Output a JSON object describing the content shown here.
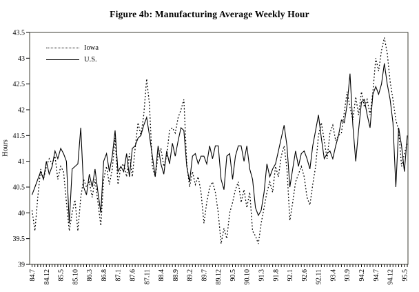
{
  "title": "Figure 4b: Manufacturing Average Weekly Hour",
  "y_axis": {
    "label": "Hours",
    "min": 39,
    "max": 43.5,
    "tick_step": 0.5,
    "tick_labels": [
      "43.5",
      "43",
      "42.5",
      "42",
      "41.5",
      "41",
      "40.5",
      "40",
      "39.5",
      "39"
    ]
  },
  "x_axis": {
    "tick_labels": [
      "84.7",
      "84.12",
      "85.5",
      "85.10",
      "86.3",
      "86.8",
      "87.1",
      "87.6",
      "87.11",
      "88.4",
      "88.9",
      "89.2",
      "89.7",
      "89.12",
      "90.5",
      "90.10",
      "91.3",
      "91.8",
      "92.1",
      "92.6",
      "92.11",
      "93.4",
      "93.9",
      "94.2",
      "94.7",
      "94.12",
      "95.5"
    ],
    "minor_ticks": "monthly",
    "label_every_n_months": 5
  },
  "legend": {
    "items": [
      {
        "label": "Iowa",
        "style": "dotted"
      },
      {
        "label": "U.S.",
        "style": "solid"
      }
    ],
    "position": "top-left-inside"
  },
  "colors": {
    "foreground": "#000000",
    "background": "#ffffff",
    "plot_border": "#3d3d33"
  },
  "chart_data": {
    "type": "line",
    "title": "Figure 4b: Manufacturing Average Weekly Hour",
    "xlabel": "",
    "ylabel": "Hours",
    "ylim": [
      39,
      43.5
    ],
    "grid": false,
    "legend_position": "top-left-inside",
    "x_frequency": "monthly",
    "x": [
      "84.7",
      "84.8",
      "84.9",
      "84.10",
      "84.11",
      "84.12",
      "85.1",
      "85.2",
      "85.3",
      "85.4",
      "85.5",
      "85.6",
      "85.7",
      "85.8",
      "85.9",
      "85.10",
      "85.11",
      "85.12",
      "86.1",
      "86.2",
      "86.3",
      "86.4",
      "86.5",
      "86.6",
      "86.7",
      "86.8",
      "86.9",
      "86.10",
      "86.11",
      "86.12",
      "87.1",
      "87.2",
      "87.3",
      "87.4",
      "87.5",
      "87.6",
      "87.7",
      "87.8",
      "87.9",
      "87.10",
      "87.11",
      "87.12",
      "88.1",
      "88.2",
      "88.3",
      "88.4",
      "88.5",
      "88.6",
      "88.7",
      "88.8",
      "88.9",
      "88.10",
      "88.11",
      "88.12",
      "89.1",
      "89.2",
      "89.3",
      "89.4",
      "89.5",
      "89.6",
      "89.7",
      "89.8",
      "89.9",
      "89.10",
      "89.11",
      "89.12",
      "90.1",
      "90.2",
      "90.3",
      "90.4",
      "90.5",
      "90.6",
      "90.7",
      "90.8",
      "90.9",
      "90.10",
      "90.11",
      "90.12",
      "91.1",
      "91.2",
      "91.3",
      "91.4",
      "91.5",
      "91.6",
      "91.7",
      "91.8",
      "91.9",
      "91.10",
      "91.11",
      "91.12",
      "92.1",
      "92.2",
      "92.3",
      "92.4",
      "92.5",
      "92.6",
      "92.7",
      "92.8",
      "92.9",
      "92.10",
      "92.11",
      "92.12",
      "93.1",
      "93.2",
      "93.3",
      "93.4",
      "93.5",
      "93.6",
      "93.7",
      "93.8",
      "93.9",
      "93.10",
      "93.11",
      "93.12",
      "94.1",
      "94.2",
      "94.3",
      "94.4",
      "94.5",
      "94.6",
      "94.7",
      "94.8",
      "94.9",
      "94.10",
      "94.11",
      "94.12",
      "95.1",
      "95.2",
      "95.3",
      "95.4",
      "95.5",
      "95.6"
    ],
    "series": [
      {
        "name": "Iowa",
        "line_style": "dotted",
        "values": [
          40.05,
          39.65,
          40.3,
          40.85,
          40.65,
          40.9,
          41.05,
          40.95,
          41.1,
          40.65,
          40.9,
          40.8,
          40.2,
          39.65,
          40.0,
          40.25,
          39.65,
          40.3,
          40.65,
          40.5,
          40.6,
          40.3,
          40.65,
          40.2,
          39.75,
          40.65,
          40.9,
          40.55,
          40.85,
          41.45,
          40.55,
          40.9,
          40.95,
          40.7,
          41.15,
          40.7,
          41.25,
          41.75,
          41.5,
          41.9,
          42.6,
          42.1,
          40.9,
          40.7,
          41.1,
          41.25,
          40.9,
          41.1,
          41.6,
          41.65,
          41.55,
          41.85,
          42.0,
          42.2,
          40.95,
          40.5,
          40.8,
          40.55,
          40.7,
          40.4,
          39.8,
          40.2,
          40.5,
          40.6,
          40.4,
          40.0,
          39.4,
          39.7,
          39.5,
          40.0,
          40.2,
          40.45,
          40.6,
          40.2,
          40.45,
          40.1,
          40.4,
          39.65,
          39.55,
          39.4,
          39.8,
          40.1,
          40.4,
          40.6,
          40.4,
          40.9,
          40.7,
          41.1,
          41.3,
          40.85,
          39.85,
          40.2,
          40.6,
          40.75,
          40.9,
          40.7,
          40.3,
          40.15,
          40.55,
          40.9,
          41.5,
          41.75,
          41.4,
          41.05,
          41.55,
          41.7,
          41.4,
          41.5,
          41.55,
          41.95,
          42.35,
          42.05,
          41.8,
          42.25,
          41.9,
          42.35,
          42.05,
          42.2,
          41.9,
          42.35,
          43.0,
          42.75,
          43.15,
          43.4,
          43.1,
          42.55,
          42.2,
          41.8,
          41.6,
          40.9,
          41.15,
          41.35
        ]
      },
      {
        "name": "U.S.",
        "line_style": "solid",
        "values": [
          40.35,
          40.5,
          40.65,
          40.8,
          40.65,
          41.0,
          40.75,
          40.9,
          41.2,
          41.05,
          41.25,
          41.15,
          41.0,
          39.8,
          40.85,
          40.9,
          40.95,
          41.65,
          40.5,
          40.35,
          40.75,
          40.5,
          40.85,
          40.4,
          40.0,
          41.0,
          41.15,
          40.8,
          41.1,
          41.6,
          40.8,
          40.9,
          40.8,
          41.15,
          40.7,
          41.25,
          41.3,
          41.45,
          41.5,
          41.7,
          41.85,
          41.5,
          41.1,
          40.7,
          41.3,
          40.95,
          40.75,
          41.2,
          40.95,
          41.35,
          41.1,
          41.4,
          41.65,
          41.6,
          40.9,
          40.6,
          41.1,
          41.15,
          40.95,
          41.1,
          41.1,
          40.95,
          41.3,
          41.05,
          41.3,
          41.3,
          40.65,
          40.45,
          41.1,
          41.15,
          40.65,
          41.1,
          41.3,
          41.3,
          41.0,
          41.3,
          40.85,
          40.65,
          40.1,
          39.95,
          40.05,
          40.4,
          40.95,
          40.7,
          40.85,
          40.95,
          41.2,
          41.45,
          41.7,
          41.3,
          40.5,
          40.85,
          41.2,
          40.9,
          41.15,
          41.2,
          41.05,
          40.85,
          41.3,
          41.6,
          41.9,
          41.45,
          41.05,
          41.15,
          41.2,
          41.05,
          41.3,
          41.5,
          41.8,
          41.75,
          42.1,
          42.7,
          41.7,
          41.0,
          41.6,
          42.15,
          42.2,
          41.9,
          41.65,
          42.3,
          42.45,
          42.3,
          42.5,
          42.9,
          42.5,
          42.2,
          41.75,
          40.5,
          41.65,
          41.3,
          40.8,
          41.5
        ]
      }
    ]
  }
}
